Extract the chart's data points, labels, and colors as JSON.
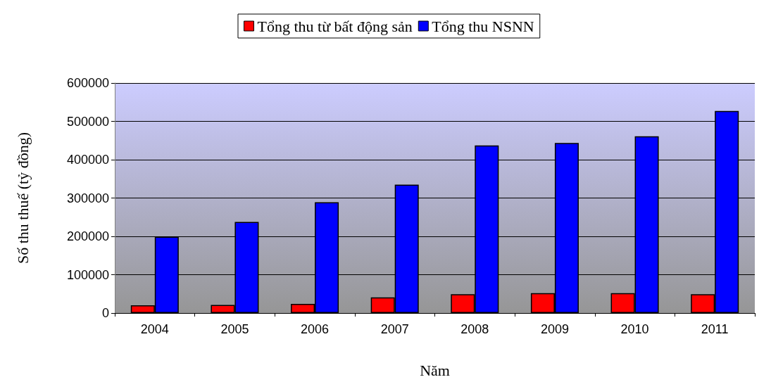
{
  "chart_data": {
    "type": "bar",
    "xlabel": "Năm",
    "ylabel": "Số thu thuế (tỷ đồng)",
    "categories": [
      "2004",
      "2005",
      "2006",
      "2007",
      "2008",
      "2009",
      "2010",
      "2011"
    ],
    "series": [
      {
        "name": "Tổng thu từ bất động sản",
        "color": "#ff0000",
        "values": [
          20000,
          21000,
          24000,
          41000,
          49000,
          52000,
          52000,
          49000
        ]
      },
      {
        "name": "Tổng thu NSNN",
        "color": "#0000ff",
        "values": [
          199000,
          237500,
          289000,
          335000,
          437000,
          443500,
          461000,
          527000
        ]
      }
    ],
    "ylim": [
      0,
      600000
    ],
    "yticks": [
      0,
      100000,
      200000,
      300000,
      400000,
      500000,
      600000
    ],
    "grid": "y",
    "legend": "top"
  }
}
